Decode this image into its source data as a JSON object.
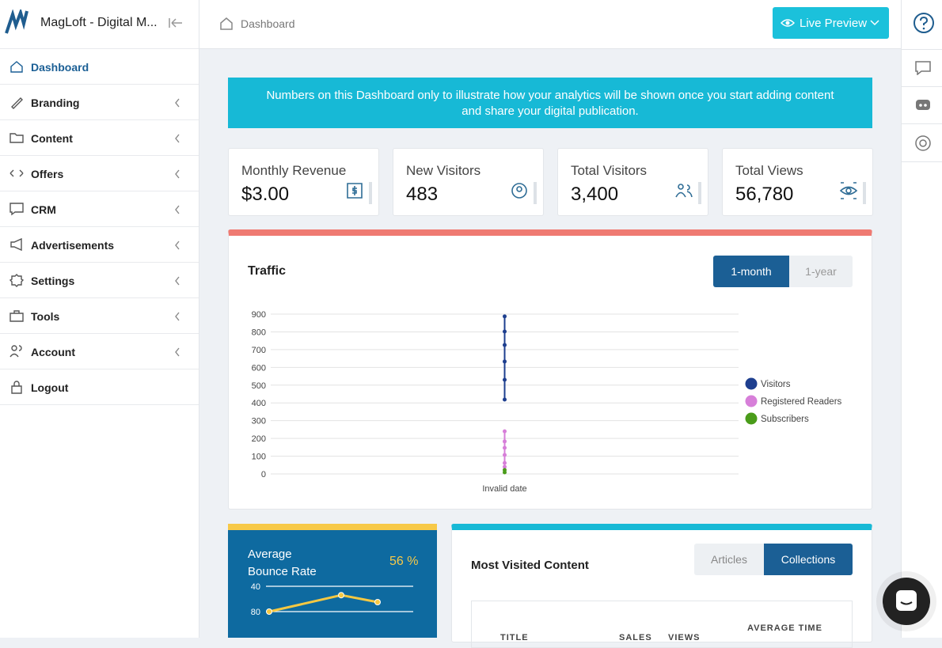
{
  "header": {
    "app_name": "MagLoft - Digital M...",
    "breadcrumb": "Dashboard",
    "live_preview": "Live Preview"
  },
  "sidebar": {
    "items": [
      "Dashboard",
      "Branding",
      "Content",
      "Offers",
      "CRM",
      "Advertisements",
      "Settings",
      "Tools",
      "Account",
      "Logout"
    ]
  },
  "notice": {
    "line1": "Numbers on this Dashboard only to illustrate how your analytics will be shown once you start adding content",
    "line2": "and share your digital publication."
  },
  "stats": [
    {
      "label": "Monthly Revenue",
      "value": "$3.00"
    },
    {
      "label": "New Visitors",
      "value": "483"
    },
    {
      "label": "Total Visitors",
      "value": "3,400"
    },
    {
      "label": "Total Views",
      "value": "56,780"
    }
  ],
  "traffic": {
    "title": "Traffic",
    "tabs": [
      "1-month",
      "1-year"
    ],
    "chart_data": {
      "type": "scatter",
      "categories": [
        "Invalid date"
      ],
      "ylim": [
        0,
        900
      ],
      "yticks": [
        0,
        100,
        200,
        300,
        400,
        500,
        600,
        700,
        800,
        900
      ],
      "grid": true,
      "legend": "right",
      "series": [
        {
          "name": "Visitors",
          "color": "#1e3f8f",
          "values": [
            887,
            802,
            726,
            633,
            530,
            419
          ]
        },
        {
          "name": "Registered Readers",
          "color": "#d77fd9",
          "values": [
            240,
            183,
            147,
            107,
            62,
            40
          ]
        },
        {
          "name": "Subscribers",
          "color": "#4a9c1a",
          "values": [
            22,
            9
          ]
        }
      ]
    }
  },
  "bounce": {
    "title_line1": "Average",
    "title_line2": "Bounce Rate",
    "value": "56 %",
    "chart_data": {
      "type": "line",
      "ylim": [
        40,
        80
      ],
      "yticks": [
        40,
        80
      ],
      "values": [
        80,
        54,
        65
      ],
      "color": "#f5c842"
    }
  },
  "most_visited": {
    "title": "Most Visited Content",
    "tabs": [
      "Articles",
      "Collections"
    ],
    "columns": [
      "TITLE",
      "SALES",
      "VIEWS",
      "AVERAGE TIME"
    ]
  }
}
